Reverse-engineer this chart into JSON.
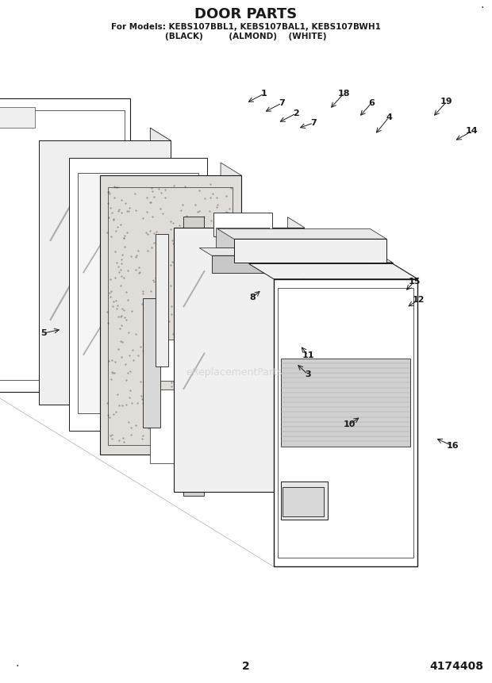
{
  "title": "DOOR PARTS",
  "subtitle_line1": "For Models: KEBS107BBL1, KEBS107BAL1, KEBS107BWH1",
  "subtitle_line2": "(BLACK)         (ALMOND)    (WHITE)",
  "watermark": "eReplacementParts.com",
  "page_number": "2",
  "part_number": "4174408",
  "background_color": "#ffffff",
  "title_fontsize": 13,
  "subtitle_fontsize": 7.5,
  "fig_width": 6.2,
  "fig_height": 8.61,
  "dpi": 100
}
